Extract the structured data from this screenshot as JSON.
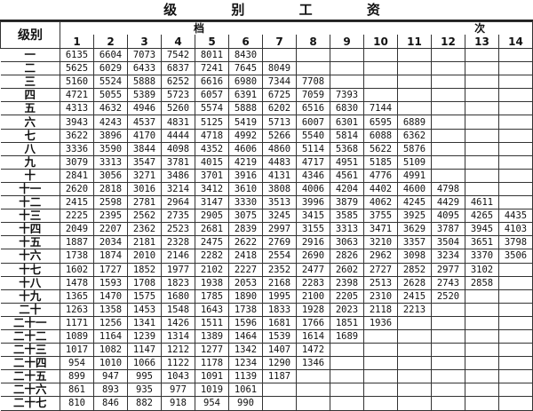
{
  "title": "级 别 工 资",
  "header": {
    "level_label": "级别",
    "step_label": "档 次",
    "steps": [
      "1",
      "2",
      "3",
      "4",
      "5",
      "6",
      "7",
      "8",
      "9",
      "10",
      "11",
      "12",
      "13",
      "14"
    ]
  },
  "rows": [
    {
      "level": "一",
      "values": [
        "6135",
        "6604",
        "7073",
        "7542",
        "8011",
        "8430"
      ]
    },
    {
      "level": "二",
      "values": [
        "5625",
        "6029",
        "6433",
        "6837",
        "7241",
        "7645",
        "8049"
      ]
    },
    {
      "level": "三",
      "values": [
        "5160",
        "5524",
        "5888",
        "6252",
        "6616",
        "6980",
        "7344",
        "7708"
      ]
    },
    {
      "level": "四",
      "values": [
        "4721",
        "5055",
        "5389",
        "5723",
        "6057",
        "6391",
        "6725",
        "7059",
        "7393"
      ]
    },
    {
      "level": "五",
      "values": [
        "4313",
        "4632",
        "4946",
        "5260",
        "5574",
        "5888",
        "6202",
        "6516",
        "6830",
        "7144"
      ]
    },
    {
      "level": "六",
      "values": [
        "3943",
        "4243",
        "4537",
        "4831",
        "5125",
        "5419",
        "5713",
        "6007",
        "6301",
        "6595",
        "6889"
      ]
    },
    {
      "level": "七",
      "values": [
        "3622",
        "3896",
        "4170",
        "4444",
        "4718",
        "4992",
        "5266",
        "5540",
        "5814",
        "6088",
        "6362"
      ]
    },
    {
      "level": "八",
      "values": [
        "3336",
        "3590",
        "3844",
        "4098",
        "4352",
        "4606",
        "4860",
        "5114",
        "5368",
        "5622",
        "5876"
      ]
    },
    {
      "level": "九",
      "values": [
        "3079",
        "3313",
        "3547",
        "3781",
        "4015",
        "4219",
        "4483",
        "4717",
        "4951",
        "5185",
        "5109"
      ]
    },
    {
      "level": "十",
      "values": [
        "2841",
        "3056",
        "3271",
        "3486",
        "3701",
        "3916",
        "4131",
        "4346",
        "4561",
        "4776",
        "4991"
      ]
    },
    {
      "level": "十一",
      "values": [
        "2620",
        "2818",
        "3016",
        "3214",
        "3412",
        "3610",
        "3808",
        "4006",
        "4204",
        "4402",
        "4600",
        "4798"
      ]
    },
    {
      "level": "十二",
      "values": [
        "2415",
        "2598",
        "2781",
        "2964",
        "3147",
        "3330",
        "3513",
        "3996",
        "3879",
        "4062",
        "4245",
        "4429",
        "4611"
      ]
    },
    {
      "level": "十三",
      "values": [
        "2225",
        "2395",
        "2562",
        "2735",
        "2905",
        "3075",
        "3245",
        "3415",
        "3585",
        "3755",
        "3925",
        "4095",
        "4265",
        "4435"
      ]
    },
    {
      "level": "十四",
      "values": [
        "2049",
        "2207",
        "2362",
        "2523",
        "2681",
        "2839",
        "2997",
        "3155",
        "3313",
        "3471",
        "3629",
        "3787",
        "3945",
        "4103"
      ]
    },
    {
      "level": "十五",
      "values": [
        "1887",
        "2034",
        "2181",
        "2328",
        "2475",
        "2622",
        "2769",
        "2916",
        "3063",
        "3210",
        "3357",
        "3504",
        "3651",
        "3798"
      ]
    },
    {
      "level": "十六",
      "values": [
        "1738",
        "1874",
        "2010",
        "2146",
        "2282",
        "2418",
        "2554",
        "2690",
        "2826",
        "2962",
        "3098",
        "3234",
        "3370",
        "3506"
      ]
    },
    {
      "level": "十七",
      "values": [
        "1602",
        "1727",
        "1852",
        "1977",
        "2102",
        "2227",
        "2352",
        "2477",
        "2602",
        "2727",
        "2852",
        "2977",
        "3102"
      ]
    },
    {
      "level": "十八",
      "values": [
        "1478",
        "1593",
        "1708",
        "1823",
        "1938",
        "2053",
        "2168",
        "2283",
        "2398",
        "2513",
        "2628",
        "2743",
        "2858"
      ]
    },
    {
      "level": "十九",
      "values": [
        "1365",
        "1470",
        "1575",
        "1680",
        "1785",
        "1890",
        "1995",
        "2100",
        "2205",
        "2310",
        "2415",
        "2520"
      ]
    },
    {
      "level": "二十",
      "values": [
        "1263",
        "1358",
        "1453",
        "1548",
        "1643",
        "1738",
        "1833",
        "1928",
        "2023",
        "2118",
        "2213"
      ]
    },
    {
      "level": "二十一",
      "values": [
        "1171",
        "1256",
        "1341",
        "1426",
        "1511",
        "1596",
        "1681",
        "1766",
        "1851",
        "1936"
      ]
    },
    {
      "level": "二十二",
      "values": [
        "1089",
        "1164",
        "1239",
        "1314",
        "1389",
        "1464",
        "1539",
        "1614",
        "1689"
      ]
    },
    {
      "level": "二十三",
      "values": [
        "1017",
        "1082",
        "1147",
        "1212",
        "1277",
        "1342",
        "1407",
        "1472"
      ]
    },
    {
      "level": "二十四",
      "values": [
        "954",
        "1010",
        "1066",
        "1122",
        "1178",
        "1234",
        "1290",
        "1346"
      ]
    },
    {
      "level": "二十五",
      "values": [
        "899",
        "947",
        "995",
        "1043",
        "1091",
        "1139",
        "1187"
      ]
    },
    {
      "level": "二十六",
      "values": [
        "861",
        "893",
        "935",
        "977",
        "1019",
        "1061"
      ]
    },
    {
      "level": "二十七",
      "values": [
        "810",
        "846",
        "882",
        "918",
        "954",
        "990"
      ]
    }
  ]
}
